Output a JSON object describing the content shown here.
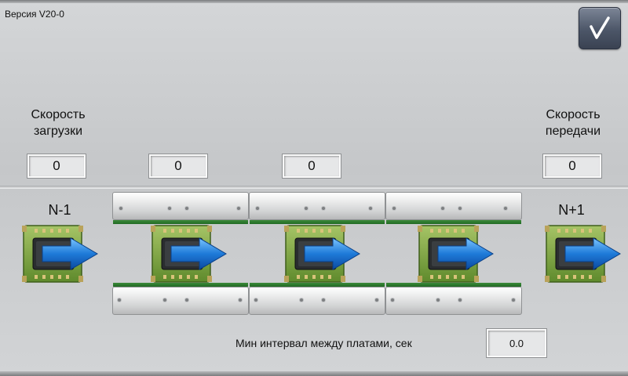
{
  "header": {
    "version": "Версия V20-0"
  },
  "confirm_button": {
    "icon": "check-icon"
  },
  "load_speed": {
    "label_line1": "Скорость",
    "label_line2": "загрузки",
    "value": "0"
  },
  "transfer_speed": {
    "label_line1": "Скорость",
    "label_line2": "передачи",
    "value": "0"
  },
  "conveyor_fields": [
    {
      "value": "0"
    },
    {
      "value": "0"
    }
  ],
  "positions": {
    "prev": "N-1",
    "next": "N+1"
  },
  "interval": {
    "label": "Мин интервал между платами, сек",
    "value": "0.0"
  },
  "colors": {
    "pcb_green": "#7da342",
    "arrow_blue": "#1e7ad8",
    "rail_green": "#2d7a2e",
    "button_dark": "#4c5668"
  },
  "board_icons": [
    "pcb-board-icon",
    "arrow-right-icon"
  ]
}
